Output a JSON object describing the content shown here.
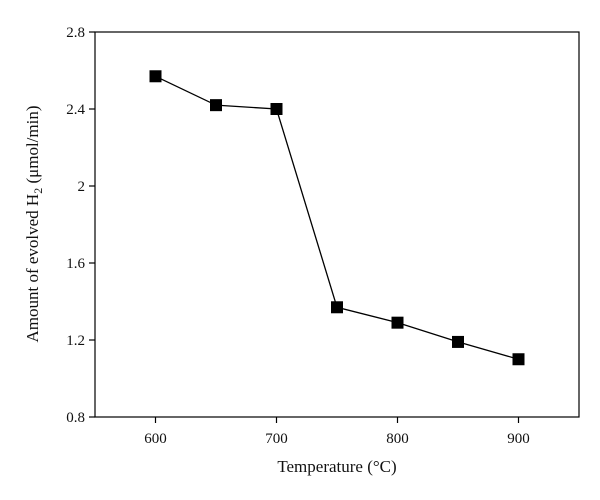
{
  "chart_data": {
    "type": "line",
    "title": "",
    "xlabel": "Temperature (°C)",
    "ylabel_prefix": "Amount of evolved H",
    "ylabel_sub": "2",
    "ylabel_suffix": " (μmol/min)",
    "xlim": [
      550,
      950
    ],
    "ylim": [
      0.8,
      2.8
    ],
    "xticks": [
      600,
      700,
      800,
      900
    ],
    "xtick_labels": [
      "600",
      "700",
      "800",
      "900"
    ],
    "yticks": [
      0.8,
      1.2,
      1.6,
      2.0,
      2.4,
      2.8
    ],
    "ytick_labels": [
      "0.8",
      "1.2",
      "1.6",
      "2",
      "2.4",
      "2.8"
    ],
    "grid": false,
    "series": [
      {
        "marker": "square",
        "color": "#000000",
        "x": [
          600,
          650,
          700,
          750,
          800,
          850,
          900
        ],
        "y": [
          2.57,
          2.42,
          2.4,
          1.37,
          1.29,
          1.19,
          1.1
        ]
      }
    ]
  }
}
